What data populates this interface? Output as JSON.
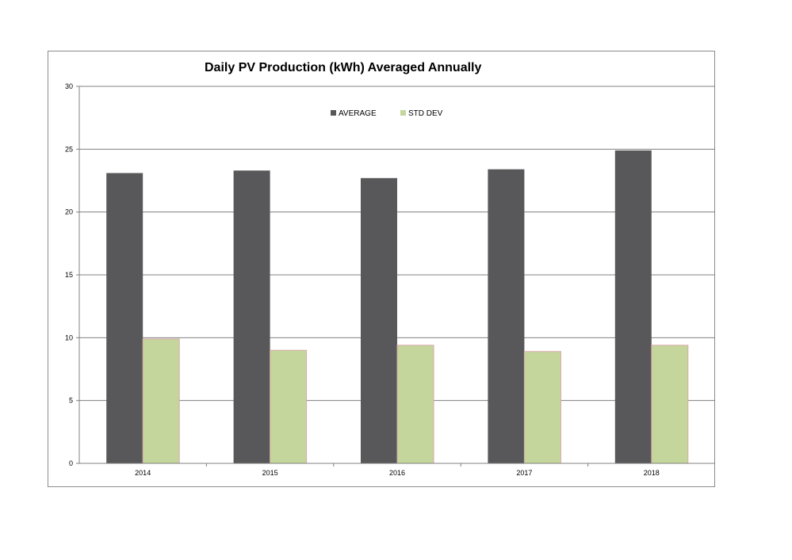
{
  "chart_data": {
    "type": "bar",
    "title": "Daily PV Production (kWh) Averaged Annually",
    "xlabel": "",
    "ylabel": "",
    "categories": [
      "2014",
      "2015",
      "2016",
      "2017",
      "2018"
    ],
    "series": [
      {
        "name": "AVERAGE",
        "values": [
          23.1,
          23.3,
          22.7,
          23.4,
          24.9
        ],
        "color": "#58585a"
      },
      {
        "name": "STD DEV",
        "values": [
          9.9,
          9.0,
          9.4,
          8.9,
          9.4
        ],
        "color": "#c4d69c",
        "stroke": "#d9a9a9"
      }
    ],
    "ylim": [
      0,
      30
    ],
    "yticks": [
      "0",
      "5",
      "10",
      "15",
      "20",
      "25",
      "30"
    ],
    "grid": true,
    "legend_position": "top-center",
    "gridline_color": "#808080"
  }
}
